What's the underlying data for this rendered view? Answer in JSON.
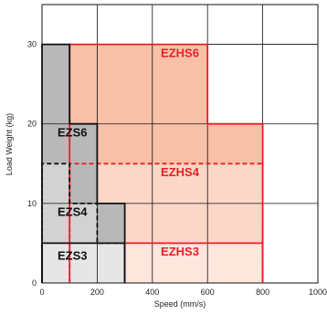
{
  "chart_data": {
    "type": "area",
    "xlabel": "Speed (mm/s)",
    "ylabel": "Load Weight (kg)",
    "xlim": [
      0,
      1000
    ],
    "ylim": [
      0,
      35
    ],
    "xticks": [
      "0",
      "200",
      "400",
      "600",
      "800",
      "1000"
    ],
    "yticks": [
      "0",
      "10",
      "20",
      "30"
    ],
    "grid": true,
    "series": [
      {
        "name": "EZHS6",
        "color": "#f9c0a8",
        "edge": "#e8202a",
        "line": "solid",
        "outline": [
          [
            100,
            0
          ],
          [
            100,
            30
          ],
          [
            600,
            30
          ],
          [
            600,
            20
          ],
          [
            800,
            20
          ],
          [
            800,
            0
          ]
        ]
      },
      {
        "name": "EZHS4",
        "color": "#fcd6c6",
        "edge": "#e8202a",
        "line": "dashed",
        "outline": [
          [
            100,
            0
          ],
          [
            100,
            15
          ],
          [
            800,
            15
          ],
          [
            800,
            0
          ]
        ]
      },
      {
        "name": "EZHS3",
        "color": "#fde6dc",
        "edge": "#e8202a",
        "line": "solid",
        "outline": [
          [
            300,
            0
          ],
          [
            300,
            5
          ],
          [
            800,
            5
          ],
          [
            800,
            0
          ]
        ]
      },
      {
        "name": "EZS6",
        "color": "#b8b8b8",
        "edge": "#111111",
        "line": "solid",
        "outline": [
          [
            0,
            0
          ],
          [
            0,
            30
          ],
          [
            100,
            30
          ],
          [
            100,
            20
          ],
          [
            200,
            20
          ],
          [
            200,
            10
          ],
          [
            300,
            10
          ],
          [
            300,
            0
          ]
        ]
      },
      {
        "name": "EZS4",
        "color": "#d2d2d2",
        "edge": "#111111",
        "line": "dashed",
        "outline": [
          [
            0,
            0
          ],
          [
            0,
            15
          ],
          [
            100,
            15
          ],
          [
            100,
            10
          ],
          [
            200,
            10
          ],
          [
            200,
            5
          ],
          [
            300,
            5
          ],
          [
            300,
            0
          ]
        ]
      },
      {
        "name": "EZS3",
        "color": "#e6e6e6",
        "edge": "#111111",
        "line": "solid",
        "outline": [
          [
            0,
            0
          ],
          [
            0,
            5
          ],
          [
            300,
            5
          ],
          [
            300,
            0
          ]
        ]
      }
    ],
    "region_labels": [
      {
        "text": "EZHS6",
        "x": 500,
        "y": 29,
        "color": "#e8202a"
      },
      {
        "text": "EZHS4",
        "x": 500,
        "y": 14,
        "color": "#e8202a"
      },
      {
        "text": "EZHS3",
        "x": 500,
        "y": 4,
        "color": "#e8202a"
      },
      {
        "text": "EZS6",
        "x": 110,
        "y": 19,
        "color": "#111111"
      },
      {
        "text": "EZS4",
        "x": 110,
        "y": 9,
        "color": "#111111"
      },
      {
        "text": "EZS3",
        "x": 110,
        "y": 3.5,
        "color": "#111111"
      }
    ]
  }
}
